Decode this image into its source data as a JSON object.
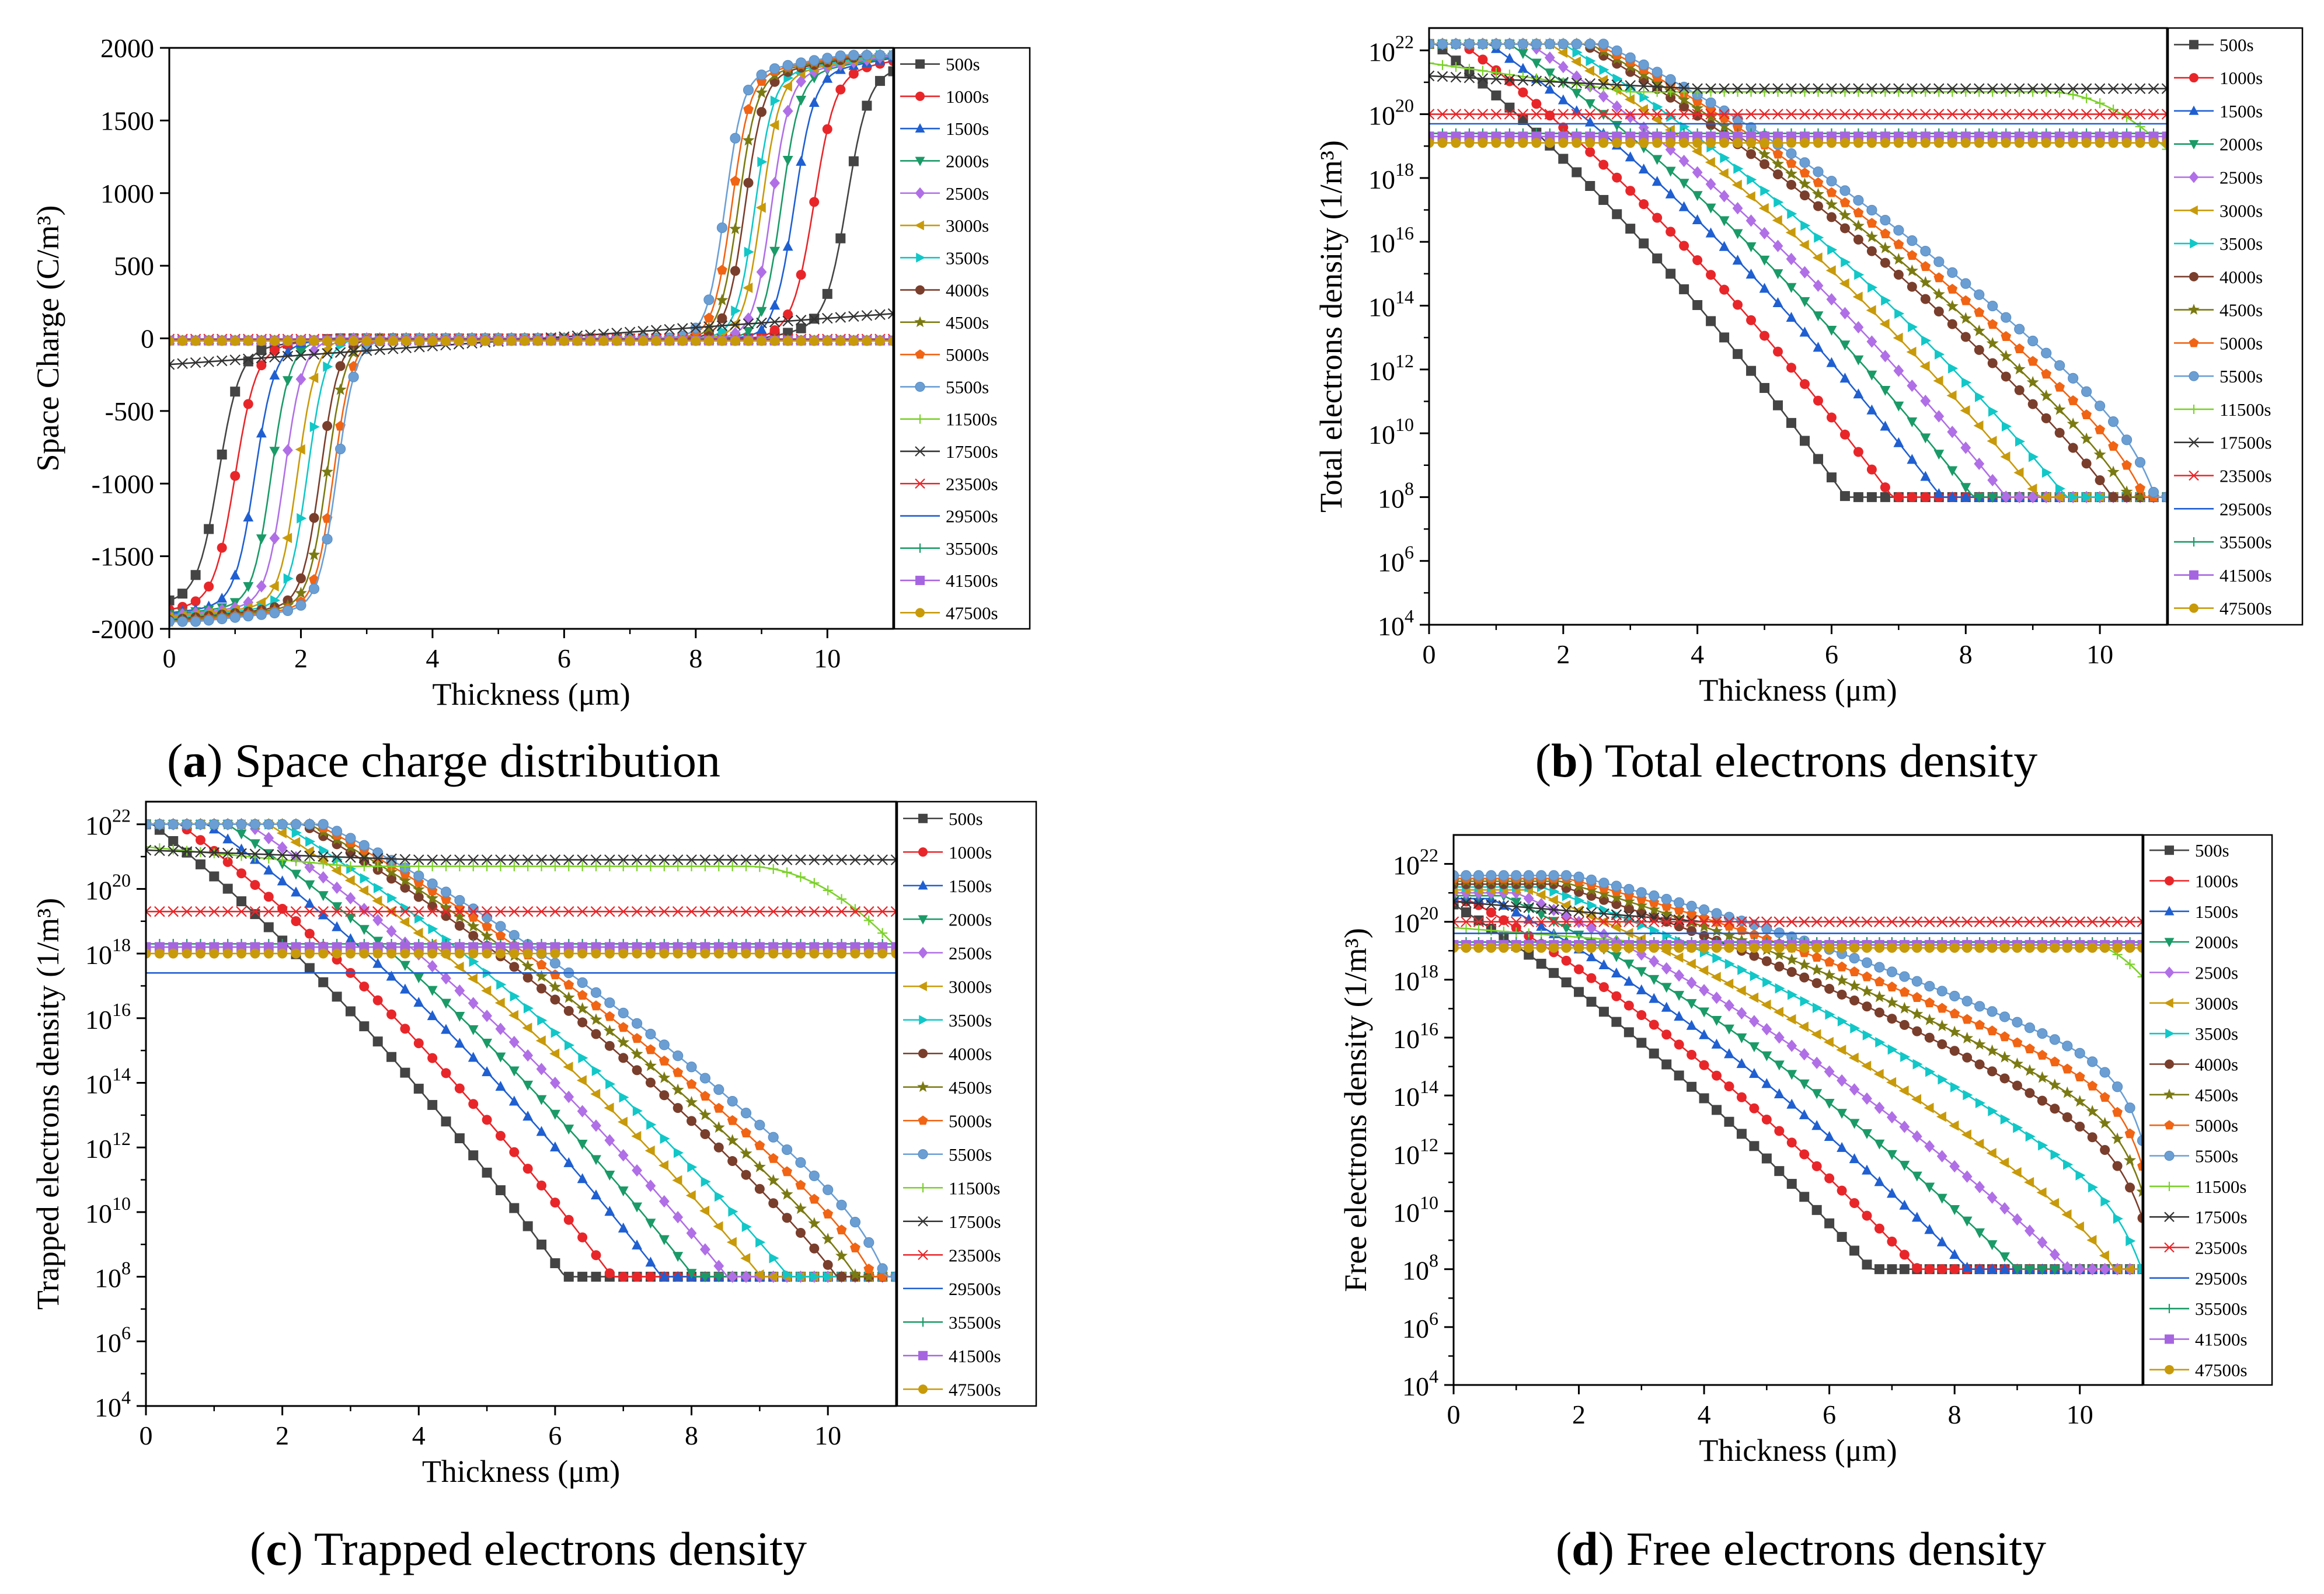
{
  "chart_data": [
    {
      "id": "a",
      "type": "line",
      "caption_label": "a",
      "caption_text": "Space charge distribution",
      "xlabel": "Thickness (μm)",
      "ylabel": "Space Charge (C/m³)",
      "xlim": [
        0,
        11
      ],
      "ylim": [
        -2000,
        2000
      ],
      "xticks": [
        0,
        2,
        4,
        6,
        8,
        10
      ],
      "yscale": "linear",
      "yticks": [
        -2000,
        -1500,
        -1000,
        -500,
        0,
        500,
        1000,
        1500,
        2000
      ],
      "legend": "right",
      "series": [
        {
          "name": "500s",
          "color": "#444444",
          "marker": "square",
          "model": "sc",
          "x0": 0.75,
          "x1": 10.3,
          "w": 0.32,
          "amp": 1700
        },
        {
          "name": "1000s",
          "color": "#e8262a",
          "marker": "circle",
          "model": "sc",
          "x0": 1.0,
          "x1": 9.8,
          "w": 0.32,
          "amp": 1750
        },
        {
          "name": "1500s",
          "color": "#1f5fd1",
          "marker": "triangle",
          "model": "sc",
          "x0": 1.3,
          "x1": 9.5,
          "w": 0.3,
          "amp": 1770
        },
        {
          "name": "2000s",
          "color": "#1a9a67",
          "marker": "triangle-down",
          "model": "sc",
          "x0": 1.55,
          "x1": 9.3,
          "w": 0.28,
          "amp": 1780
        },
        {
          "name": "2500s",
          "color": "#b06fe6",
          "marker": "diamond",
          "model": "sc",
          "x0": 1.75,
          "x1": 9.15,
          "w": 0.28,
          "amp": 1790
        },
        {
          "name": "3000s",
          "color": "#c89a0a",
          "marker": "triangle-left",
          "model": "sc",
          "x0": 1.95,
          "x1": 9.0,
          "w": 0.28,
          "amp": 1800
        },
        {
          "name": "3500s",
          "color": "#11c7c7",
          "marker": "triangle-right",
          "model": "sc",
          "x0": 2.1,
          "x1": 8.9,
          "w": 0.28,
          "amp": 1810
        },
        {
          "name": "4000s",
          "color": "#7a3e2c",
          "marker": "circle",
          "model": "sc",
          "x0": 2.3,
          "x1": 8.75,
          "w": 0.28,
          "amp": 1820
        },
        {
          "name": "4500s",
          "color": "#7a7a12",
          "marker": "star",
          "model": "sc",
          "x0": 2.4,
          "x1": 8.65,
          "w": 0.28,
          "amp": 1830
        },
        {
          "name": "5000s",
          "color": "#f06414",
          "marker": "pentagon",
          "model": "sc",
          "x0": 2.5,
          "x1": 8.55,
          "w": 0.28,
          "amp": 1840
        },
        {
          "name": "5500s",
          "color": "#6b9fd4",
          "marker": "circle-shaded",
          "model": "sc",
          "x0": 2.55,
          "x1": 8.45,
          "w": 0.28,
          "amp": 1850
        },
        {
          "name": "11500s",
          "color": "#7bd12a",
          "marker": "plus",
          "model": "flat",
          "v": -10
        },
        {
          "name": "17500s",
          "color": "#333333",
          "marker": "x",
          "model": "linear",
          "y0": -180,
          "y1": 170
        },
        {
          "name": "23500s",
          "color": "#e8262a",
          "marker": "asterisk",
          "model": "flat",
          "v": -5
        },
        {
          "name": "29500s",
          "color": "#1f5fd1",
          "marker": "none",
          "model": "flat",
          "v": -8
        },
        {
          "name": "35500s",
          "color": "#1a9a67",
          "marker": "plus",
          "model": "flat",
          "v": -12
        },
        {
          "name": "41500s",
          "color": "#a665e0",
          "marker": "square",
          "model": "flat",
          "v": -15
        },
        {
          "name": "47500s",
          "color": "#c89a0a",
          "marker": "circle",
          "model": "flat",
          "v": -18
        }
      ]
    },
    {
      "id": "b",
      "type": "line",
      "caption_label": "b",
      "caption_text": "Total electrons density",
      "xlabel": "Thickness (μm)",
      "ylabel": "Total electrons density (1/m³)",
      "xlim": [
        0,
        11
      ],
      "ylim_exp": [
        4,
        22.7
      ],
      "xticks": [
        0,
        2,
        4,
        6,
        8,
        10
      ],
      "yscale": "log",
      "ytick_exponents": [
        4,
        6,
        8,
        10,
        12,
        14,
        16,
        18,
        20,
        22
      ],
      "legend": "right",
      "series": [
        {
          "name": "500s",
          "color": "#444444",
          "marker": "square",
          "model": "decay",
          "top": 22.2,
          "d": 0.1,
          "slope": -1.7,
          "fx": 10.8,
          "fw": 0.7
        },
        {
          "name": "1000s",
          "color": "#e8262a",
          "marker": "circle",
          "model": "decay",
          "top": 22.2,
          "d": 0.5,
          "slope": -1.6,
          "fx": 10.8,
          "fw": 0.7
        },
        {
          "name": "1500s",
          "color": "#1f5fd1",
          "marker": "triangle",
          "model": "decay",
          "top": 22.2,
          "d": 0.9,
          "slope": -1.5,
          "fx": 10.8,
          "fw": 0.6
        },
        {
          "name": "2000s",
          "color": "#1a9a67",
          "marker": "triangle-down",
          "model": "decay",
          "top": 22.2,
          "d": 1.2,
          "slope": -1.45,
          "fx": 10.8,
          "fw": 0.55
        },
        {
          "name": "2500s",
          "color": "#b06fe6",
          "marker": "diamond",
          "model": "decay",
          "top": 22.2,
          "d": 1.5,
          "slope": -1.4,
          "fx": 10.8,
          "fw": 0.5
        },
        {
          "name": "3000s",
          "color": "#c89a0a",
          "marker": "triangle-left",
          "model": "decay",
          "top": 22.2,
          "d": 1.8,
          "slope": -1.35,
          "fx": 10.8,
          "fw": 0.45
        },
        {
          "name": "3500s",
          "color": "#11c7c7",
          "marker": "triangle-right",
          "model": "decay",
          "top": 22.2,
          "d": 2.0,
          "slope": -1.3,
          "fx": 10.8,
          "fw": 0.42
        },
        {
          "name": "4000s",
          "color": "#7a3e2c",
          "marker": "circle",
          "model": "decay",
          "top": 22.2,
          "d": 2.3,
          "slope": -1.2,
          "fx": 10.8,
          "fw": 0.4
        },
        {
          "name": "4500s",
          "color": "#7a7a12",
          "marker": "star",
          "model": "decay",
          "top": 22.2,
          "d": 2.4,
          "slope": -1.15,
          "fx": 10.8,
          "fw": 0.38
        },
        {
          "name": "5000s",
          "color": "#f06414",
          "marker": "pentagon",
          "model": "decay",
          "top": 22.2,
          "d": 2.5,
          "slope": -1.1,
          "fx": 10.8,
          "fw": 0.36
        },
        {
          "name": "5500s",
          "color": "#6b9fd4",
          "marker": "circle-shaded",
          "model": "decay",
          "top": 22.2,
          "d": 2.6,
          "slope": -1.05,
          "fx": 10.8,
          "fw": 0.35
        },
        {
          "name": "11500s",
          "color": "#7bd12a",
          "marker": "plus",
          "model": "plateau",
          "top": 21.6,
          "v": 20.7,
          "dropx": 9.2,
          "drop": 1.8
        },
        {
          "name": "17500s",
          "color": "#333333",
          "marker": "x",
          "model": "rise",
          "y0": 21.2,
          "y1": 20.8
        },
        {
          "name": "23500s",
          "color": "#e8262a",
          "marker": "asterisk",
          "model": "flatlog",
          "v": 20.0
        },
        {
          "name": "29500s",
          "color": "#1f5fd1",
          "marker": "none",
          "model": "flatlog",
          "v": 19.7
        },
        {
          "name": "35500s",
          "color": "#1a9a67",
          "marker": "plus",
          "model": "flatlog",
          "v": 19.4
        },
        {
          "name": "41500s",
          "color": "#a665e0",
          "marker": "square",
          "model": "flatlog",
          "v": 19.3
        },
        {
          "name": "47500s",
          "color": "#c89a0a",
          "marker": "circle",
          "model": "flatlog",
          "v": 19.1
        }
      ]
    },
    {
      "id": "c",
      "type": "line",
      "caption_label": "c",
      "caption_text": "Trapped electrons density",
      "xlabel": "Thickness (μm)",
      "ylabel": "Trapped electrons density (1/m³)",
      "xlim": [
        0,
        11
      ],
      "ylim_exp": [
        4,
        22.7
      ],
      "xticks": [
        0,
        2,
        4,
        6,
        8,
        10
      ],
      "yscale": "log",
      "ytick_exponents": [
        4,
        6,
        8,
        10,
        12,
        14,
        16,
        18,
        20,
        22
      ],
      "legend": "right",
      "series": [
        {
          "name": "500s",
          "color": "#444444",
          "marker": "square",
          "model": "decay",
          "top": 22.0,
          "d": 0.1,
          "slope": -1.7,
          "fx": 10.9,
          "fw": 0.7
        },
        {
          "name": "1000s",
          "color": "#e8262a",
          "marker": "circle",
          "model": "decay",
          "top": 22.0,
          "d": 0.5,
          "slope": -1.6,
          "fx": 10.9,
          "fw": 0.7
        },
        {
          "name": "1500s",
          "color": "#1f5fd1",
          "marker": "triangle",
          "model": "decay",
          "top": 22.0,
          "d": 0.9,
          "slope": -1.5,
          "fx": 10.9,
          "fw": 0.6
        },
        {
          "name": "2000s",
          "color": "#1a9a67",
          "marker": "triangle-down",
          "model": "decay",
          "top": 22.0,
          "d": 1.2,
          "slope": -1.45,
          "fx": 10.9,
          "fw": 0.55
        },
        {
          "name": "2500s",
          "color": "#b06fe6",
          "marker": "diamond",
          "model": "decay",
          "top": 22.0,
          "d": 1.5,
          "slope": -1.4,
          "fx": 10.9,
          "fw": 0.5
        },
        {
          "name": "3000s",
          "color": "#c89a0a",
          "marker": "triangle-left",
          "model": "decay",
          "top": 22.0,
          "d": 1.8,
          "slope": -1.35,
          "fx": 10.9,
          "fw": 0.45
        },
        {
          "name": "3500s",
          "color": "#11c7c7",
          "marker": "triangle-right",
          "model": "decay",
          "top": 22.0,
          "d": 2.0,
          "slope": -1.3,
          "fx": 10.9,
          "fw": 0.42
        },
        {
          "name": "4000s",
          "color": "#7a3e2c",
          "marker": "circle",
          "model": "decay",
          "top": 22.0,
          "d": 2.3,
          "slope": -1.2,
          "fx": 10.9,
          "fw": 0.4
        },
        {
          "name": "4500s",
          "color": "#7a7a12",
          "marker": "star",
          "model": "decay",
          "top": 22.0,
          "d": 2.4,
          "slope": -1.15,
          "fx": 10.9,
          "fw": 0.38
        },
        {
          "name": "5000s",
          "color": "#f06414",
          "marker": "pentagon",
          "model": "decay",
          "top": 22.0,
          "d": 2.5,
          "slope": -1.1,
          "fx": 10.9,
          "fw": 0.36
        },
        {
          "name": "5500s",
          "color": "#6b9fd4",
          "marker": "circle-shaded",
          "model": "decay",
          "top": 22.0,
          "d": 2.6,
          "slope": -1.05,
          "fx": 10.9,
          "fw": 0.35
        },
        {
          "name": "11500s",
          "color": "#7bd12a",
          "marker": "plus",
          "model": "plateau",
          "top": 21.3,
          "v": 20.7,
          "dropx": 8.8,
          "drop": 2.5
        },
        {
          "name": "17500s",
          "color": "#333333",
          "marker": "x",
          "model": "rise",
          "y0": 21.2,
          "y1": 20.9
        },
        {
          "name": "23500s",
          "color": "#e8262a",
          "marker": "asterisk",
          "model": "flatlog",
          "v": 19.3
        },
        {
          "name": "29500s",
          "color": "#1f5fd1",
          "marker": "none",
          "model": "flatlog",
          "v": 17.4
        },
        {
          "name": "35500s",
          "color": "#1a9a67",
          "marker": "plus",
          "model": "flatlog",
          "v": 18.3
        },
        {
          "name": "41500s",
          "color": "#a665e0",
          "marker": "square",
          "model": "flatlog",
          "v": 18.2
        },
        {
          "name": "47500s",
          "color": "#c89a0a",
          "marker": "circle",
          "model": "flatlog",
          "v": 18.0
        }
      ]
    },
    {
      "id": "d",
      "type": "line",
      "caption_label": "d",
      "caption_text": "Free electrons density",
      "xlabel": "Thickness (μm)",
      "ylabel": "Free electrons density (1/m³)",
      "xlim": [
        0,
        11
      ],
      "ylim_exp": [
        4,
        23
      ],
      "xticks": [
        0,
        2,
        4,
        6,
        8,
        10
      ],
      "yscale": "log",
      "ytick_exponents": [
        4,
        6,
        8,
        10,
        12,
        14,
        16,
        18,
        20,
        22
      ],
      "legend": "right",
      "series": [
        {
          "name": "500s",
          "color": "#444444",
          "marker": "square",
          "model": "decay",
          "top": 20.6,
          "d": 0.0,
          "slope": -1.35,
          "fx": 10.8,
          "fw": 0.7
        },
        {
          "name": "1000s",
          "color": "#e8262a",
          "marker": "circle",
          "model": "decay",
          "top": 20.7,
          "d": 0.3,
          "slope": -1.25,
          "fx": 10.8,
          "fw": 0.65
        },
        {
          "name": "1500s",
          "color": "#1f5fd1",
          "marker": "triangle",
          "model": "decay",
          "top": 20.8,
          "d": 0.6,
          "slope": -1.15,
          "fx": 10.8,
          "fw": 0.6
        },
        {
          "name": "2000s",
          "color": "#1a9a67",
          "marker": "triangle-down",
          "model": "decay",
          "top": 20.9,
          "d": 0.8,
          "slope": -1.05,
          "fx": 10.8,
          "fw": 0.55
        },
        {
          "name": "2500s",
          "color": "#b06fe6",
          "marker": "diamond",
          "model": "decay",
          "top": 21.0,
          "d": 1.0,
          "slope": -0.95,
          "fx": 10.8,
          "fw": 0.5
        },
        {
          "name": "3000s",
          "color": "#c89a0a",
          "marker": "triangle-left",
          "model": "decay",
          "top": 21.1,
          "d": 1.2,
          "slope": -0.85,
          "fx": 10.8,
          "fw": 0.45
        },
        {
          "name": "3500s",
          "color": "#11c7c7",
          "marker": "triangle-right",
          "model": "decay",
          "top": 21.2,
          "d": 1.4,
          "slope": -0.75,
          "fx": 10.8,
          "fw": 0.42
        },
        {
          "name": "4000s",
          "color": "#7a3e2c",
          "marker": "circle",
          "model": "decay",
          "top": 21.3,
          "d": 1.6,
          "slope": -0.65,
          "fx": 10.8,
          "fw": 0.4
        },
        {
          "name": "4500s",
          "color": "#7a7a12",
          "marker": "star",
          "model": "decay",
          "top": 21.4,
          "d": 1.7,
          "slope": -0.6,
          "fx": 10.8,
          "fw": 0.38
        },
        {
          "name": "5000s",
          "color": "#f06414",
          "marker": "pentagon",
          "model": "decay",
          "top": 21.5,
          "d": 1.8,
          "slope": -0.55,
          "fx": 10.8,
          "fw": 0.36
        },
        {
          "name": "5500s",
          "color": "#6b9fd4",
          "marker": "circle-shaded",
          "model": "decay",
          "top": 21.6,
          "d": 1.9,
          "slope": -0.5,
          "fx": 10.8,
          "fw": 0.35
        },
        {
          "name": "11500s",
          "color": "#7bd12a",
          "marker": "plus",
          "model": "plateau",
          "top": 19.8,
          "v": 19.3,
          "dropx": 10.0,
          "drop": 1.2
        },
        {
          "name": "17500s",
          "color": "#333333",
          "marker": "x",
          "model": "rise",
          "y0": 20.7,
          "y1": 20.0
        },
        {
          "name": "23500s",
          "color": "#e8262a",
          "marker": "asterisk",
          "model": "flatlog",
          "v": 20.0
        },
        {
          "name": "29500s",
          "color": "#1f5fd1",
          "marker": "none",
          "model": "flatlog",
          "v": 19.6
        },
        {
          "name": "35500s",
          "color": "#1a9a67",
          "marker": "plus",
          "model": "flatlog",
          "v": 19.3
        },
        {
          "name": "41500s",
          "color": "#a665e0",
          "marker": "square",
          "model": "flatlog",
          "v": 19.2
        },
        {
          "name": "47500s",
          "color": "#c89a0a",
          "marker": "circle",
          "model": "flatlog",
          "v": 19.1
        }
      ]
    }
  ]
}
